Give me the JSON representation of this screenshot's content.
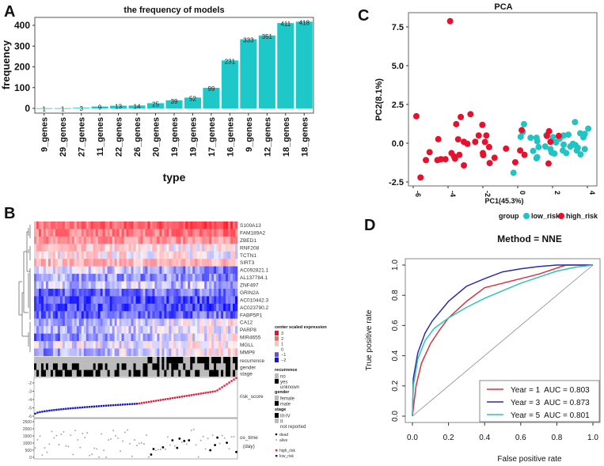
{
  "panels": {
    "a": "A",
    "b": "B",
    "c": "C",
    "d": "D"
  },
  "colors": {
    "bar": "#1fc8c8",
    "low_risk": "#20c4c4",
    "high_risk": "#e8112d",
    "year1": "#d9333f",
    "year3": "#2b2bb0",
    "year5": "#2ec4b6",
    "heat_high": "#e8112d",
    "heat_low": "#1010e8"
  },
  "chart_data": [
    {
      "type": "bar",
      "title": "the frequency of models",
      "xlabel": "type",
      "ylabel": "frequency",
      "ylim": [
        0,
        440
      ],
      "yticks": [
        0,
        100,
        200,
        300,
        400
      ],
      "categories": [
        "9_genes",
        "29_genes",
        "27_genes",
        "11_genes",
        "22_genes",
        "26_genes",
        "20_genes",
        "19_genes",
        "19_genes",
        "17_genes",
        "16_genes",
        "9_genes",
        "12_genes",
        "18_genes",
        "18_genes"
      ],
      "values": [
        1,
        1,
        3,
        9,
        13,
        14,
        25,
        39,
        52,
        99,
        231,
        333,
        351,
        411,
        418
      ]
    },
    {
      "type": "heatmap",
      "genes": [
        "S100A13",
        "FAM189A2",
        "ZBED1",
        "RNF208",
        "TCTN1",
        "SIRT3",
        "AC092821.1",
        "AL137784.1",
        "ZNF497",
        "GRIN2A",
        "AC010442.3",
        "AC023790.2",
        "FABP5P1",
        "CA12",
        "PARP8",
        "MIR4655",
        "MGLL",
        "MMP9"
      ],
      "annotation_rows": [
        "recurrence",
        "gender",
        "stage"
      ],
      "risk_label": "risk_score",
      "risk_ticks": [
        "-2",
        "-3",
        "-4",
        "-5",
        "-6"
      ],
      "os_label": "os_time",
      "os_unit": "(day)",
      "os_ticks": [
        "2500",
        "2000",
        "1500",
        "1000",
        "500",
        "0"
      ],
      "legend": {
        "expression_title": "center scaled expression",
        "expression_levels": [
          "3",
          "2",
          "1",
          "0",
          "−1",
          "−2"
        ],
        "recurrence_title": "recurrence",
        "recurrence": [
          "no",
          "yes",
          "unknown"
        ],
        "gender_title": "gender",
        "gender": [
          "female",
          "male"
        ],
        "stage_title": "stage",
        "stage": [
          "III-IV",
          "II",
          "not reported"
        ],
        "status": [
          "dead",
          "alive"
        ],
        "risk": [
          "high_risk",
          "low_risk"
        ]
      }
    },
    {
      "type": "scatter",
      "title": "PCA",
      "xlabel": "PC1(45.3%)",
      "ylabel": "PC2(8.1%)",
      "xlim": [
        -6.3,
        4.3
      ],
      "ylim": [
        -2.8,
        8.3
      ],
      "xticks": [
        "-6",
        "-4",
        "-2",
        "0",
        "2",
        "4"
      ],
      "yticks": [
        "7.5",
        "5.0",
        "2.5",
        "0.0",
        "-2.5"
      ],
      "legend_title": "group",
      "legend_position": "bottom",
      "series": [
        {
          "name": "low_risk",
          "points": [
            [
              -0.24,
              -1.91
            ],
            [
              0.17,
              0.41
            ],
            [
              0.29,
              0.72
            ],
            [
              0.36,
              1.23
            ],
            [
              0.74,
              0.35
            ],
            [
              0.89,
              -0.5
            ],
            [
              1.08,
              0.35
            ],
            [
              1.12,
              0.13
            ],
            [
              1.2,
              -0.25
            ],
            [
              1.08,
              -0.97
            ],
            [
              1.12,
              -0.9
            ],
            [
              1.58,
              -0.21
            ],
            [
              1.65,
              0.52
            ],
            [
              2.03,
              0.38
            ],
            [
              1.88,
              -0.38
            ],
            [
              1.95,
              -0.6
            ],
            [
              2.11,
              -0.67
            ],
            [
              2.41,
              0.3
            ],
            [
              2.64,
              0.5
            ],
            [
              2.91,
              0.55
            ],
            [
              2.64,
              -0.09
            ],
            [
              2.59,
              -0.47
            ],
            [
              2.79,
              -0.64
            ],
            [
              3.02,
              -0.21
            ],
            [
              3.17,
              -0.04
            ],
            [
              3.29,
              1.36
            ],
            [
              3.32,
              -0.13
            ],
            [
              3.39,
              -0.47
            ],
            [
              3.59,
              0.64
            ],
            [
              3.77,
              0.38
            ],
            [
              3.61,
              -0.72
            ],
            [
              3.85,
              0.6
            ],
            [
              3.85,
              -0.38
            ],
            [
              4.05,
              0.94
            ],
            [
              3.45,
              -0.3
            ],
            [
              2.2,
              0.05
            ]
          ]
        },
        {
          "name": "high_risk",
          "points": [
            [
              -3.88,
              7.87
            ],
            [
              -5.82,
              1.74
            ],
            [
              -5.58,
              -2.21
            ],
            [
              -5.27,
              -1.09
            ],
            [
              -5.06,
              -0.58
            ],
            [
              -4.56,
              0.26
            ],
            [
              -4.61,
              -1.09
            ],
            [
              -4.41,
              -1.03
            ],
            [
              -4.15,
              -1.03
            ],
            [
              -3.8,
              -0.64
            ],
            [
              -3.53,
              1.23
            ],
            [
              -3.42,
              0.25
            ],
            [
              -3.65,
              -0.86
            ],
            [
              -3.6,
              -1.0
            ],
            [
              -3.27,
              1.69
            ],
            [
              -3.35,
              -0.75
            ],
            [
              -3.09,
              -1.43
            ],
            [
              -3.09,
              0.09
            ],
            [
              -2.89,
              -0.04
            ],
            [
              -2.71,
              1.87
            ],
            [
              -2.44,
              0.09
            ],
            [
              -2.24,
              0.5
            ],
            [
              -2.03,
              1.18
            ],
            [
              -1.8,
              0.5
            ],
            [
              -1.88,
              0.08
            ],
            [
              -1.64,
              -0.25
            ],
            [
              -2.0,
              -0.64
            ],
            [
              -1.98,
              -0.77
            ],
            [
              -1.61,
              -1.28
            ],
            [
              -1.33,
              -0.94
            ],
            [
              -0.67,
              -0.35
            ],
            [
              -0.14,
              -1.23
            ],
            [
              0.14,
              -0.47
            ],
            [
              0.23,
              0.84
            ],
            [
              0.39,
              -0.75
            ],
            [
              1.8,
              0.77
            ],
            [
              1.68,
              0.47
            ],
            [
              1.88,
              0.09
            ],
            [
              1.77,
              -1.31
            ],
            [
              2.36,
              0.47
            ]
          ]
        }
      ]
    },
    {
      "type": "line",
      "title": "Method = NNE",
      "xlabel": "False positive rate",
      "ylabel": "True positive rate",
      "xlim": [
        0,
        1
      ],
      "ylim": [
        0,
        1
      ],
      "ticks": [
        "0.0",
        "0.2",
        "0.4",
        "0.6",
        "0.8",
        "1.0"
      ],
      "legend_position": "bottom-right",
      "series": [
        {
          "name": "Year = 1  AUC = 0.803",
          "color_key": "year1",
          "points": [
            [
              0,
              0
            ],
            [
              0.02,
              0.2
            ],
            [
              0.05,
              0.35
            ],
            [
              0.1,
              0.48
            ],
            [
              0.15,
              0.57
            ],
            [
              0.2,
              0.65
            ],
            [
              0.3,
              0.76
            ],
            [
              0.4,
              0.85
            ],
            [
              0.5,
              0.88
            ],
            [
              0.6,
              0.91
            ],
            [
              0.7,
              0.94
            ],
            [
              0.85,
              1.0
            ],
            [
              1,
              1
            ]
          ]
        },
        {
          "name": "Year = 3  AUC = 0.873",
          "color_key": "year3",
          "points": [
            [
              0,
              0
            ],
            [
              0.005,
              0.25
            ],
            [
              0.03,
              0.42
            ],
            [
              0.07,
              0.55
            ],
            [
              0.11,
              0.63
            ],
            [
              0.2,
              0.76
            ],
            [
              0.3,
              0.86
            ],
            [
              0.4,
              0.91
            ],
            [
              0.5,
              0.955
            ],
            [
              0.6,
              0.975
            ],
            [
              0.7,
              0.99
            ],
            [
              0.8,
              1.0
            ],
            [
              1,
              1
            ]
          ]
        },
        {
          "name": "Year = 5  AUC = 0.801",
          "color_key": "year5",
          "points": [
            [
              0,
              0
            ],
            [
              0.005,
              0.2
            ],
            [
              0.03,
              0.38
            ],
            [
              0.07,
              0.5
            ],
            [
              0.12,
              0.58
            ],
            [
              0.2,
              0.65
            ],
            [
              0.3,
              0.72
            ],
            [
              0.4,
              0.78
            ],
            [
              0.5,
              0.83
            ],
            [
              0.6,
              0.88
            ],
            [
              0.7,
              0.92
            ],
            [
              0.8,
              0.96
            ],
            [
              0.9,
              0.985
            ],
            [
              1,
              1
            ]
          ]
        }
      ]
    }
  ]
}
